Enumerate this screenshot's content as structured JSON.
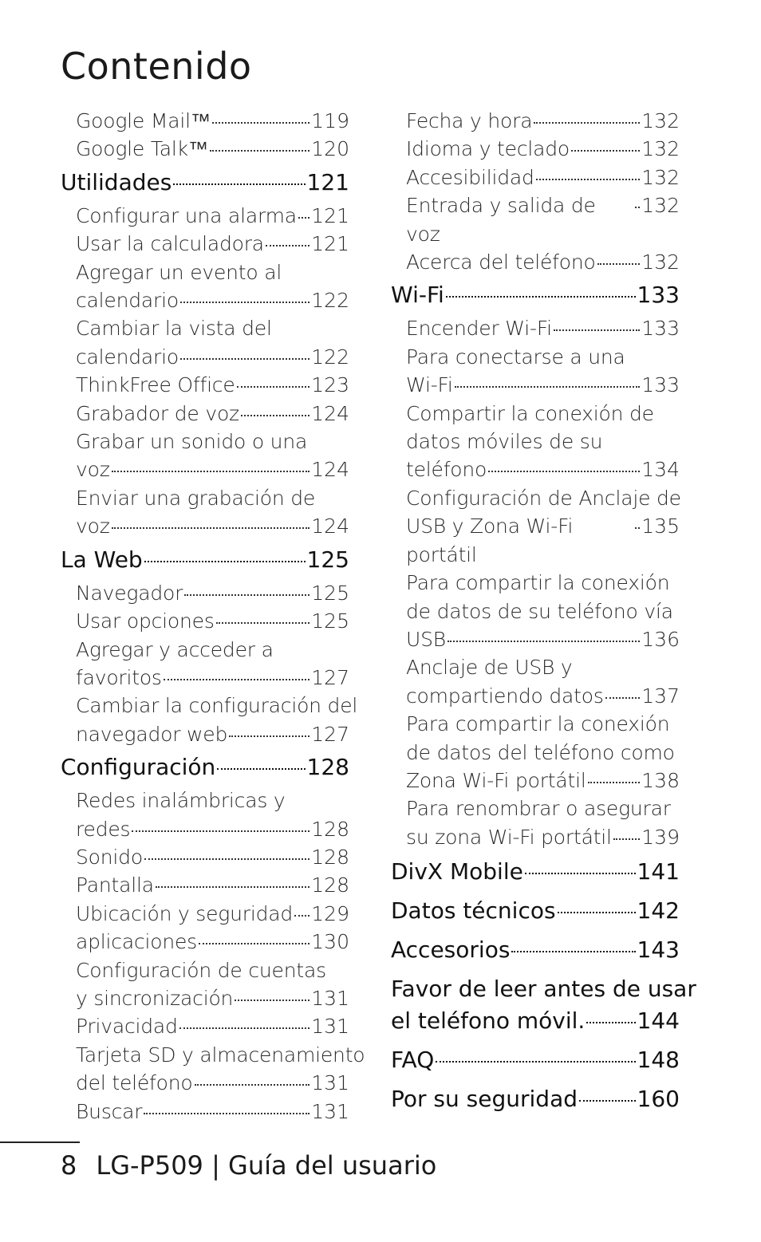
{
  "title": "Contenido",
  "footer": {
    "page": "8",
    "text": "LG-P509 | Guía del usuario"
  },
  "left": [
    {
      "k": "sub",
      "text": "Google Mail™",
      "page": "119"
    },
    {
      "k": "sub",
      "text": "Google Talk™",
      "page": "120"
    },
    {
      "k": "main",
      "text": "Utilidades",
      "page": "121"
    },
    {
      "k": "sub",
      "text": "Configurar una alarma",
      "page": "121"
    },
    {
      "k": "sub",
      "text": "Usar la calculadora",
      "page": "121"
    },
    {
      "k": "sub",
      "lines": [
        "Agregar un evento al"
      ],
      "text": "calendario",
      "page": "122"
    },
    {
      "k": "sub",
      "lines": [
        "Cambiar la vista del"
      ],
      "text": "calendario",
      "page": "122"
    },
    {
      "k": "sub",
      "text": "ThinkFree Office",
      "page": "123"
    },
    {
      "k": "sub",
      "text": "Grabador de voz",
      "page": "124"
    },
    {
      "k": "sub",
      "lines": [
        "Grabar un sonido o una"
      ],
      "text": "voz",
      "page": "124"
    },
    {
      "k": "sub",
      "lines": [
        "Enviar una grabación de"
      ],
      "text": "voz",
      "page": "124"
    },
    {
      "k": "main",
      "text": "La Web",
      "page": "125"
    },
    {
      "k": "sub",
      "text": "Navegador",
      "page": "125"
    },
    {
      "k": "sub",
      "text": "Usar opciones",
      "page": "125"
    },
    {
      "k": "sub",
      "lines": [
        "Agregar y acceder a"
      ],
      "text": "favoritos",
      "page": "127"
    },
    {
      "k": "sub",
      "lines": [
        "Cambiar la configuración del"
      ],
      "text": "navegador web",
      "page": "127"
    },
    {
      "k": "main",
      "text": "Configuración",
      "page": "128"
    },
    {
      "k": "sub",
      "lines": [
        "Redes inalámbricas y"
      ],
      "text": "redes",
      "page": "128"
    },
    {
      "k": "sub",
      "text": "Sonido",
      "page": "128"
    },
    {
      "k": "sub",
      "text": "Pantalla",
      "page": "128"
    },
    {
      "k": "sub",
      "text": "Ubicación y seguridad",
      "page": "129"
    },
    {
      "k": "sub",
      "text": "aplicaciones",
      "page": "130"
    },
    {
      "k": "sub",
      "lines": [
        "Configuración de cuentas"
      ],
      "text": "y sincronización",
      "page": "131"
    },
    {
      "k": "sub",
      "text": "Privacidad",
      "page": "131"
    },
    {
      "k": "sub",
      "lines": [
        "Tarjeta SD y almacenamiento"
      ],
      "text": "del teléfono",
      "page": "131"
    },
    {
      "k": "sub",
      "text": "Buscar",
      "page": "131"
    }
  ],
  "right": [
    {
      "k": "sub",
      "text": "Fecha y hora",
      "page": "132"
    },
    {
      "k": "sub",
      "text": "Idioma y teclado",
      "page": "132"
    },
    {
      "k": "sub",
      "text": "Accesibilidad",
      "page": "132"
    },
    {
      "k": "sub",
      "text": "Entrada y salida de voz",
      "page": "132"
    },
    {
      "k": "sub",
      "text": "Acerca del teléfono",
      "page": "132"
    },
    {
      "k": "main",
      "text": "Wi-Fi",
      "page": "133"
    },
    {
      "k": "sub",
      "text": "Encender Wi-Fi",
      "page": "133"
    },
    {
      "k": "sub",
      "lines": [
        "Para conectarse a una"
      ],
      "text": "Wi-Fi",
      "page": "133"
    },
    {
      "k": "sub",
      "lines": [
        "Compartir la conexión de",
        "datos móviles de su"
      ],
      "text": "teléfono",
      "page": "134"
    },
    {
      "k": "sub",
      "lines": [
        "Configuración de Anclaje de"
      ],
      "text": "USB y Zona Wi-Fi portátil",
      "page": "135"
    },
    {
      "k": "sub",
      "lines": [
        "Para compartir la conexión",
        "de datos de su teléfono vía"
      ],
      "text": "USB",
      "page": "136"
    },
    {
      "k": "sub",
      "lines": [
        "Anclaje de USB y"
      ],
      "text": "compartiendo datos",
      "page": "137"
    },
    {
      "k": "sub",
      "lines": [
        "Para compartir la conexión",
        "de datos del teléfono como"
      ],
      "text": "Zona Wi-Fi portátil",
      "page": "138"
    },
    {
      "k": "sub",
      "lines": [
        "Para renombrar o asegurar"
      ],
      "text": "su zona Wi-Fi portátil",
      "page": "139"
    },
    {
      "k": "mainbig",
      "text": "DivX Mobile",
      "page": "141"
    },
    {
      "k": "mainbig",
      "text": "Datos técnicos",
      "page": "142"
    },
    {
      "k": "mainbig",
      "text": "Accesorios",
      "page": "143"
    },
    {
      "k": "mainbig",
      "lines": [
        "Favor de leer antes de usar"
      ],
      "text": "el teléfono móvil.",
      "page": "144"
    },
    {
      "k": "mainbig",
      "text": "FAQ",
      "page": "148"
    },
    {
      "k": "mainbig",
      "text": "Por su seguridad",
      "page": "160"
    }
  ]
}
